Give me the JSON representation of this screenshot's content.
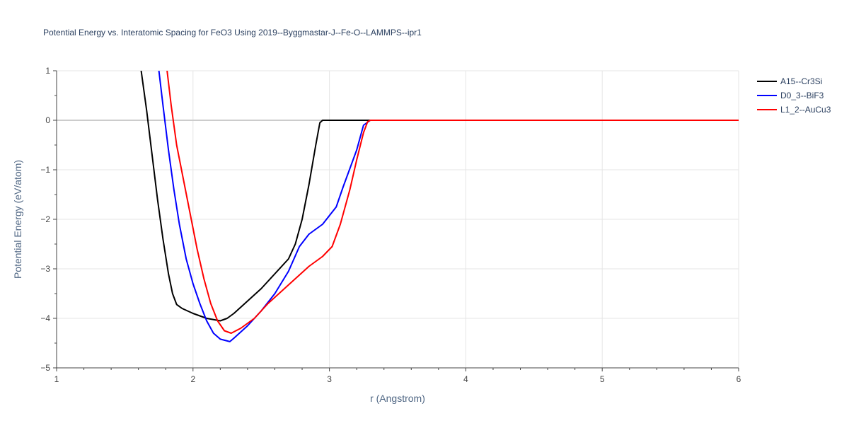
{
  "chart_data": {
    "type": "line",
    "title": "Potential Energy vs. Interatomic Spacing for FeO3 Using 2019--Byggmastar-J--Fe-O--LAMMPS--ipr1",
    "xlabel": "r (Angstrom)",
    "ylabel": "Potential Energy (eV/atom)",
    "xlim": [
      1,
      6
    ],
    "ylim": [
      -5,
      1
    ],
    "x_ticks": [
      1,
      2,
      3,
      4,
      5,
      6
    ],
    "y_ticks": [
      1,
      0,
      -1,
      -2,
      -3,
      -4,
      -5
    ],
    "x_tick_labels": [
      "1",
      "2",
      "3",
      "4",
      "5",
      "6"
    ],
    "y_tick_labels": [
      "1",
      "0",
      "−1",
      "−2",
      "−3",
      "−4",
      "−5"
    ],
    "grid": true,
    "legend_position": "top-right",
    "series": [
      {
        "name": "A15--Cr3Si",
        "color": "#000000",
        "points": [
          [
            1.62,
            1.0
          ],
          [
            1.66,
            0.2
          ],
          [
            1.7,
            -0.7
          ],
          [
            1.74,
            -1.6
          ],
          [
            1.78,
            -2.4
          ],
          [
            1.82,
            -3.1
          ],
          [
            1.85,
            -3.5
          ],
          [
            1.88,
            -3.72
          ],
          [
            1.92,
            -3.8
          ],
          [
            2.0,
            -3.9
          ],
          [
            2.1,
            -4.0
          ],
          [
            2.2,
            -4.05
          ],
          [
            2.25,
            -4.0
          ],
          [
            2.3,
            -3.9
          ],
          [
            2.4,
            -3.65
          ],
          [
            2.5,
            -3.4
          ],
          [
            2.6,
            -3.1
          ],
          [
            2.7,
            -2.8
          ],
          [
            2.75,
            -2.5
          ],
          [
            2.8,
            -2.0
          ],
          [
            2.85,
            -1.3
          ],
          [
            2.9,
            -0.5
          ],
          [
            2.93,
            -0.05
          ],
          [
            2.95,
            0.0
          ],
          [
            3.0,
            0.0
          ],
          [
            3.5,
            0.0
          ],
          [
            4.0,
            0.0
          ],
          [
            5.0,
            0.0
          ],
          [
            6.0,
            0.0
          ]
        ]
      },
      {
        "name": "D0_3--BiF3",
        "color": "#0000ff",
        "points": [
          [
            1.75,
            1.0
          ],
          [
            1.78,
            0.3
          ],
          [
            1.82,
            -0.6
          ],
          [
            1.86,
            -1.4
          ],
          [
            1.9,
            -2.1
          ],
          [
            1.95,
            -2.8
          ],
          [
            2.0,
            -3.3
          ],
          [
            2.05,
            -3.7
          ],
          [
            2.1,
            -4.05
          ],
          [
            2.15,
            -4.3
          ],
          [
            2.2,
            -4.42
          ],
          [
            2.27,
            -4.47
          ],
          [
            2.3,
            -4.4
          ],
          [
            2.4,
            -4.15
          ],
          [
            2.5,
            -3.85
          ],
          [
            2.6,
            -3.5
          ],
          [
            2.7,
            -3.05
          ],
          [
            2.78,
            -2.55
          ],
          [
            2.85,
            -2.3
          ],
          [
            2.95,
            -2.1
          ],
          [
            3.05,
            -1.75
          ],
          [
            3.1,
            -1.35
          ],
          [
            3.2,
            -0.6
          ],
          [
            3.25,
            -0.1
          ],
          [
            3.3,
            0.0
          ],
          [
            3.5,
            0.0
          ],
          [
            4.0,
            0.0
          ],
          [
            5.0,
            0.0
          ],
          [
            6.0,
            0.0
          ]
        ]
      },
      {
        "name": "L1_2--AuCu3",
        "color": "#ff0000",
        "points": [
          [
            1.81,
            1.0
          ],
          [
            1.84,
            0.3
          ],
          [
            1.88,
            -0.5
          ],
          [
            1.93,
            -1.2
          ],
          [
            1.98,
            -1.9
          ],
          [
            2.03,
            -2.6
          ],
          [
            2.08,
            -3.2
          ],
          [
            2.13,
            -3.7
          ],
          [
            2.18,
            -4.05
          ],
          [
            2.23,
            -4.25
          ],
          [
            2.28,
            -4.3
          ],
          [
            2.35,
            -4.2
          ],
          [
            2.45,
            -4.0
          ],
          [
            2.55,
            -3.7
          ],
          [
            2.65,
            -3.45
          ],
          [
            2.75,
            -3.2
          ],
          [
            2.85,
            -2.95
          ],
          [
            2.95,
            -2.75
          ],
          [
            3.02,
            -2.55
          ],
          [
            3.08,
            -2.1
          ],
          [
            3.15,
            -1.4
          ],
          [
            3.2,
            -0.8
          ],
          [
            3.25,
            -0.25
          ],
          [
            3.28,
            -0.03
          ],
          [
            3.3,
            0.0
          ],
          [
            3.5,
            0.0
          ],
          [
            4.0,
            0.0
          ],
          [
            5.0,
            0.0
          ],
          [
            6.0,
            0.0
          ]
        ]
      }
    ]
  }
}
